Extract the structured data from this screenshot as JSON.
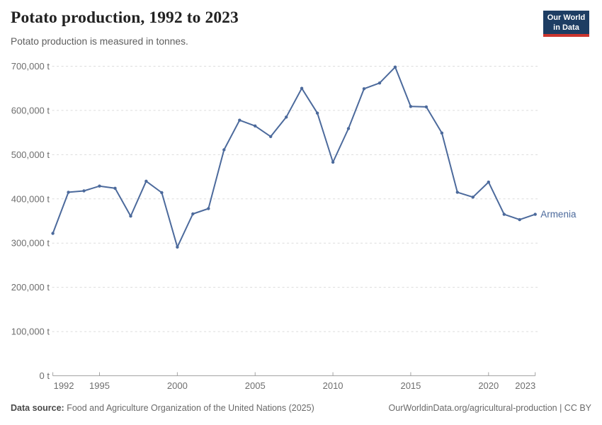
{
  "header": {
    "title": "Potato production, 1992 to 2023",
    "subtitle": "Potato production is measured in tonnes.",
    "logo": {
      "line1": "Our World",
      "line2": "in Data",
      "bg_color": "#1d3d63",
      "bar_color": "#cb352e"
    }
  },
  "chart_data": {
    "type": "line",
    "title": "Potato production, 1992 to 2023",
    "subtitle": "Potato production is measured in tonnes.",
    "unit": "t",
    "x": [
      1992,
      1993,
      1994,
      1995,
      1996,
      1997,
      1998,
      1999,
      2000,
      2001,
      2002,
      2003,
      2004,
      2005,
      2006,
      2007,
      2008,
      2009,
      2010,
      2011,
      2012,
      2013,
      2014,
      2015,
      2016,
      2017,
      2018,
      2019,
      2020,
      2021,
      2022,
      2023
    ],
    "series": [
      {
        "name": "Armenia",
        "color": "#4C6A9C",
        "values": [
          322000,
          415000,
          418000,
          429000,
          424000,
          361000,
          440000,
          414000,
          291000,
          366000,
          378000,
          511000,
          578000,
          565000,
          541000,
          585000,
          650000,
          594000,
          483000,
          559000,
          649000,
          662000,
          698000,
          609000,
          608000,
          549000,
          415000,
          404000,
          438000,
          365000,
          353000,
          365000
        ]
      }
    ],
    "xlim": [
      1992,
      2023
    ],
    "ylim": [
      0,
      700000
    ],
    "x_ticks": [
      1992,
      1995,
      2000,
      2005,
      2010,
      2015,
      2020,
      2023
    ],
    "x_tick_labels": [
      "1992",
      "1995",
      "2000",
      "2005",
      "2010",
      "2015",
      "2020",
      "2023"
    ],
    "y_ticks": [
      0,
      100000,
      200000,
      300000,
      400000,
      500000,
      600000,
      700000
    ],
    "y_tick_labels": [
      "0 t",
      "100,000 t",
      "200,000 t",
      "300,000 t",
      "400,000 t",
      "500,000 t",
      "600,000 t",
      "700,000 t"
    ],
    "grid": "horizontal-dashed",
    "legend": "end-of-line-label",
    "colors": {
      "line": "#4C6A9C",
      "grid": "#dcdcdc",
      "axis": "#a3a3a3",
      "tick_label": "#6e6e6e"
    }
  },
  "footer": {
    "source_label": "Data source:",
    "source_text": "Food and Agriculture Organization of the United Nations (2025)",
    "link_text": "OurWorldinData.org/agricultural-production | CC BY"
  }
}
